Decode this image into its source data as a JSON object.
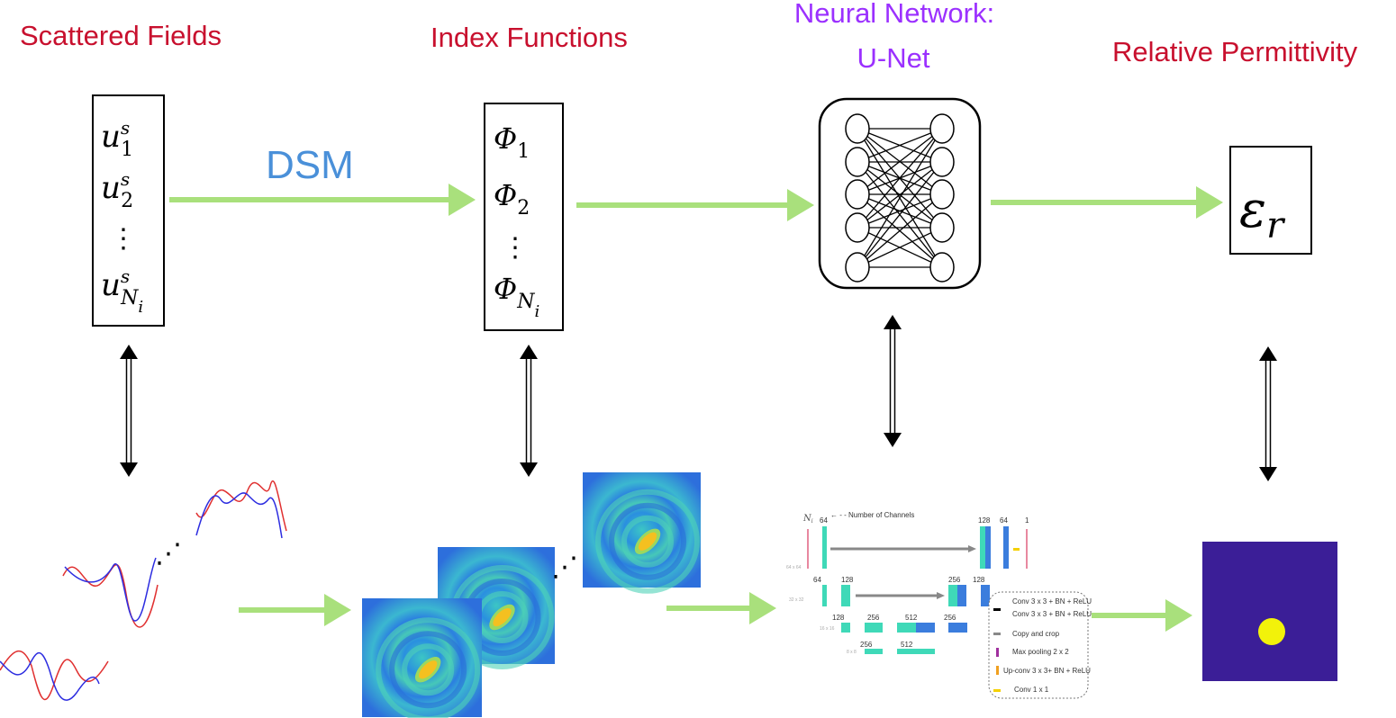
{
  "headers": {
    "scattered_fields": "Scattered Fields",
    "index_functions": "Index Functions",
    "neural_network_line1": "Neural Network:",
    "neural_network_line2": "U-Net",
    "relative_permittivity": "Relative Permittivity"
  },
  "dsm_label": "DSM",
  "scattered_box": {
    "symbol": "u",
    "superscript": "s",
    "subscripts": [
      "1",
      "2",
      "N"
    ],
    "last_sub_sub": "i",
    "ellipsis": "⋮"
  },
  "index_box": {
    "symbol": "Φ",
    "subscripts": [
      "1",
      "2",
      "N"
    ],
    "last_sub_sub": "i",
    "ellipsis": "⋮"
  },
  "permittivity_box": {
    "symbol": "ε",
    "subscript": "r"
  },
  "ellipsis_dots": "⋰",
  "unet": {
    "input_label": "N",
    "input_sub": "i",
    "channels_note": "← - - Number of Channels",
    "channel_labels": [
      "64",
      "128",
      "64",
      "1",
      "64",
      "128",
      "256",
      "128",
      "128",
      "256",
      "512",
      "256",
      "256",
      "512"
    ],
    "resolution_labels": [
      "64 x 64",
      "32 x 32",
      "16 x 16",
      "8 x 8"
    ],
    "legend": [
      "Conv 3 x 3 + BN + ReLU",
      "Conv 3 x 3 + BN + ReLU",
      "Copy and crop",
      "Max pooling 2 x 2",
      "Up-conv 3 x 3+ BN + ReLU",
      "Conv 1 x 1"
    ]
  },
  "colors": {
    "header_red": "#c8102e",
    "header_purple": "#9b30ff",
    "dsm_blue": "#4a90d9",
    "arrow_green": "#a9e07c",
    "permittivity_bg": "#3b1e97",
    "permittivity_target": "#f2f20a",
    "unet_teal": "#3fd9b8",
    "unet_blue": "#3b7ddd"
  }
}
